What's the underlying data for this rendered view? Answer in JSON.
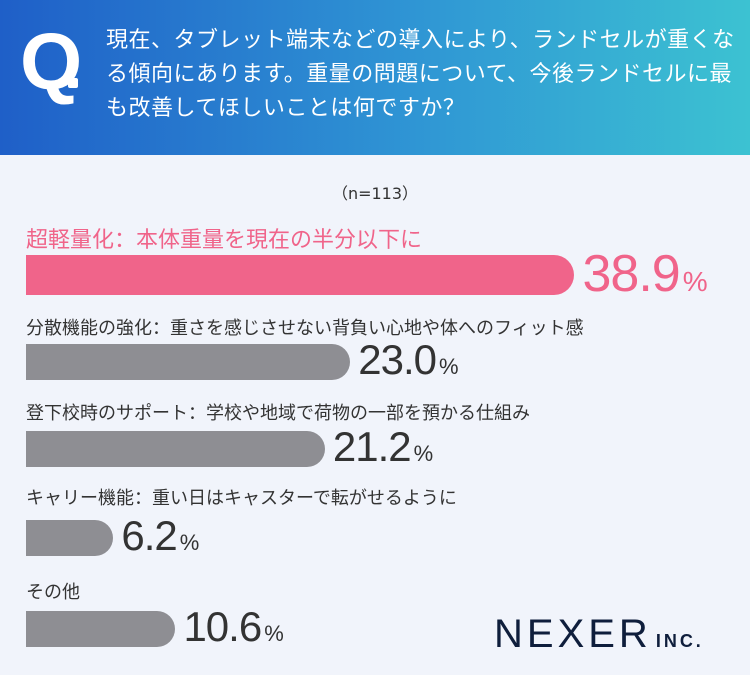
{
  "header": {
    "q_mark": "Q",
    "question": "現在、タブレット端末などの導入により、ランドセルが重くなる傾向にあります。重量の問題について、今後ランドセルに最も改善してほしいことは何ですか？"
  },
  "chart_data": {
    "type": "bar",
    "orientation": "horizontal",
    "sample": "（n=113）",
    "unit": "%",
    "categories": [
      "超軽量化：本体重量を現在の半分以下に",
      "分散機能の強化：重さを感じさせない背負い心地や体へのフィット感",
      "登下校時のサポート：学校や地域で荷物の一部を預かる仕組み",
      "キャリー機能：重い日はキャスターで転がせるように",
      "その他"
    ],
    "values": [
      38.9,
      23.0,
      21.2,
      6.2,
      10.6
    ],
    "value_labels": [
      "38.9",
      "23.0",
      "21.2",
      "6.2",
      "10.6"
    ],
    "highlight_index": 0,
    "colors": {
      "highlight": "#f0648a",
      "default": "#8e8e93"
    }
  },
  "logo": {
    "main": "NEXER",
    "sub": "INC."
  }
}
